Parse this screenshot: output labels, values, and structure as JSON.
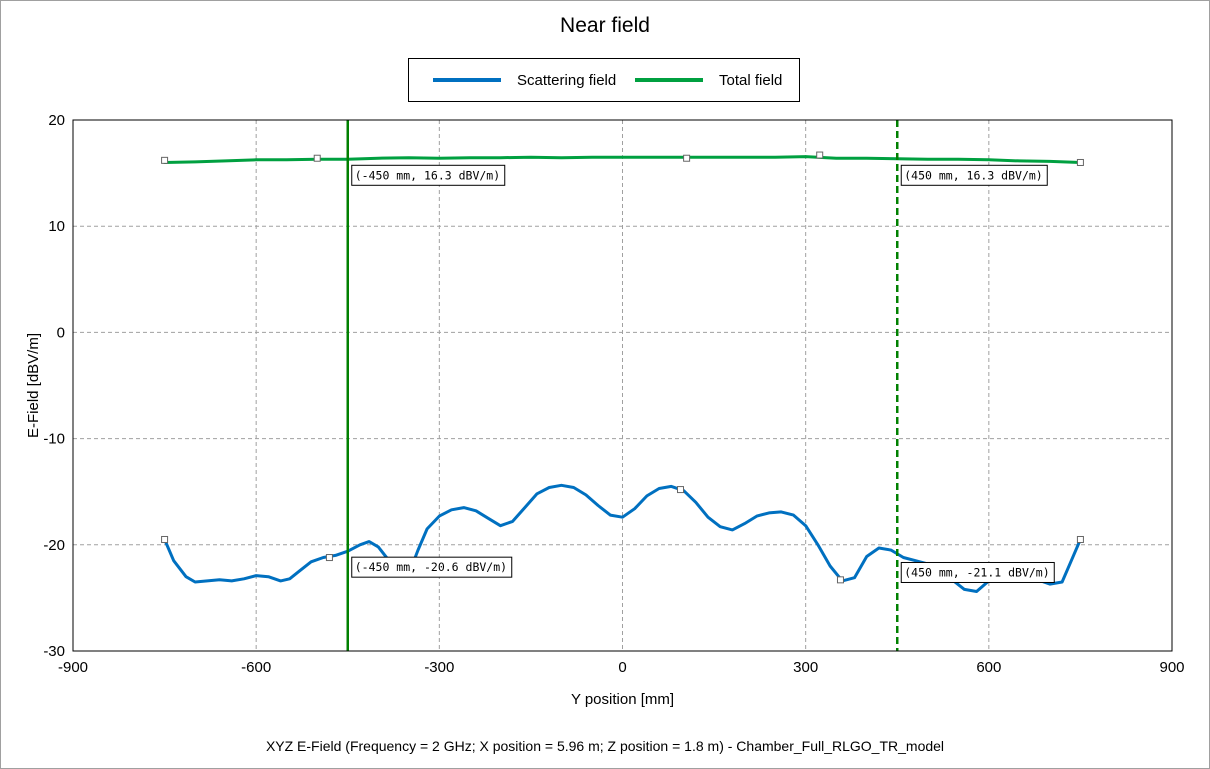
{
  "window": {
    "title": "Near field"
  },
  "footer": {
    "text": "XYZ E-Field (Frequency = 2 GHz; X position = 5.96 m; Z position = 1.8 m) - Chamber_Full_RLGO_TR_model"
  },
  "colors": {
    "scattering": "#0070c0",
    "total": "#00a040",
    "marker_solid": "#008000",
    "marker_dashed": "#008000",
    "grid": "#a0a0a0"
  },
  "chart_data": {
    "type": "line",
    "title": "Near field",
    "xlabel": "Y position [mm]",
    "ylabel": "E-Field [dBV/m]",
    "xlim": [
      -900,
      900
    ],
    "ylim": [
      -30,
      20
    ],
    "xticks": [
      -900,
      -600,
      -300,
      0,
      300,
      600,
      900
    ],
    "yticks": [
      20,
      10,
      0,
      -10,
      -20,
      -30
    ],
    "grid": true,
    "legend_position": "top-center",
    "series": [
      {
        "name": "Scattering field",
        "color": "#0070c0",
        "x": [
          -750,
          -735,
          -715,
          -700,
          -680,
          -660,
          -640,
          -620,
          -600,
          -580,
          -560,
          -545,
          -530,
          -510,
          -490,
          -470,
          -450,
          -430,
          -415,
          -400,
          -385,
          -370,
          -355,
          -345,
          -335,
          -320,
          -300,
          -280,
          -260,
          -240,
          -220,
          -200,
          -180,
          -160,
          -140,
          -120,
          -100,
          -80,
          -60,
          -40,
          -20,
          0,
          20,
          40,
          60,
          80,
          100,
          120,
          140,
          160,
          180,
          200,
          220,
          240,
          260,
          280,
          300,
          320,
          340,
          360,
          380,
          400,
          420,
          440,
          460,
          480,
          500,
          520,
          540,
          560,
          580,
          600,
          620,
          640,
          660,
          680,
          700,
          720,
          735,
          750
        ],
        "y": [
          -19.5,
          -21.5,
          -23.0,
          -23.5,
          -23.4,
          -23.3,
          -23.4,
          -23.2,
          -22.9,
          -23.0,
          -23.4,
          -23.2,
          -22.5,
          -21.6,
          -21.2,
          -21.0,
          -20.6,
          -20.0,
          -19.7,
          -20.2,
          -21.3,
          -22.5,
          -22.6,
          -22.0,
          -20.5,
          -18.5,
          -17.3,
          -16.7,
          -16.5,
          -16.8,
          -17.5,
          -18.2,
          -17.8,
          -16.5,
          -15.2,
          -14.6,
          -14.4,
          -14.6,
          -15.3,
          -16.3,
          -17.2,
          -17.4,
          -16.6,
          -15.4,
          -14.7,
          -14.5,
          -14.9,
          -16.0,
          -17.4,
          -18.3,
          -18.6,
          -18.0,
          -17.3,
          -17.0,
          -16.9,
          -17.2,
          -18.2,
          -20.0,
          -22.0,
          -23.4,
          -23.1,
          -21.1,
          -20.3,
          -20.5,
          -21.2,
          -21.5,
          -21.8,
          -22.4,
          -23.3,
          -24.2,
          -24.4,
          -23.4,
          -23.1,
          -23.0,
          -23.0,
          -23.3,
          -23.7,
          -23.5,
          -21.5,
          -19.5
        ],
        "markers": [
          [
            -750,
            -19.5
          ],
          [
            -480,
            -21.2
          ],
          [
            95,
            -14.8
          ],
          [
            357,
            -23.3
          ],
          [
            750,
            -19.5
          ]
        ]
      },
      {
        "name": "Total field",
        "color": "#00a040",
        "x": [
          -750,
          -700,
          -650,
          -600,
          -550,
          -500,
          -450,
          -400,
          -350,
          -300,
          -250,
          -200,
          -150,
          -100,
          -50,
          0,
          50,
          100,
          150,
          200,
          250,
          300,
          350,
          400,
          450,
          500,
          550,
          600,
          650,
          700,
          750
        ],
        "y": [
          16.0,
          16.05,
          16.15,
          16.25,
          16.25,
          16.3,
          16.3,
          16.4,
          16.45,
          16.4,
          16.45,
          16.45,
          16.5,
          16.45,
          16.5,
          16.5,
          16.5,
          16.5,
          16.5,
          16.5,
          16.5,
          16.55,
          16.4,
          16.4,
          16.35,
          16.3,
          16.3,
          16.25,
          16.15,
          16.1,
          16.0
        ],
        "markers": [
          [
            -750,
            16.2
          ],
          [
            -500,
            16.4
          ],
          [
            105,
            16.4
          ],
          [
            323,
            16.7
          ],
          [
            750,
            16.0
          ]
        ]
      }
    ],
    "vertical_markers": [
      {
        "x": -450,
        "style": "solid",
        "labels": [
          "(-450 mm, 16.3 dBV/m)",
          "(-450 mm, -20.6 dBV/m)"
        ],
        "label_y": [
          16.3,
          -20.6
        ]
      },
      {
        "x": 450,
        "style": "dashed",
        "labels": [
          "(450 mm, 16.3 dBV/m)",
          "(450 mm, -21.1 dBV/m)"
        ],
        "label_y": [
          16.3,
          -21.1
        ]
      }
    ]
  }
}
